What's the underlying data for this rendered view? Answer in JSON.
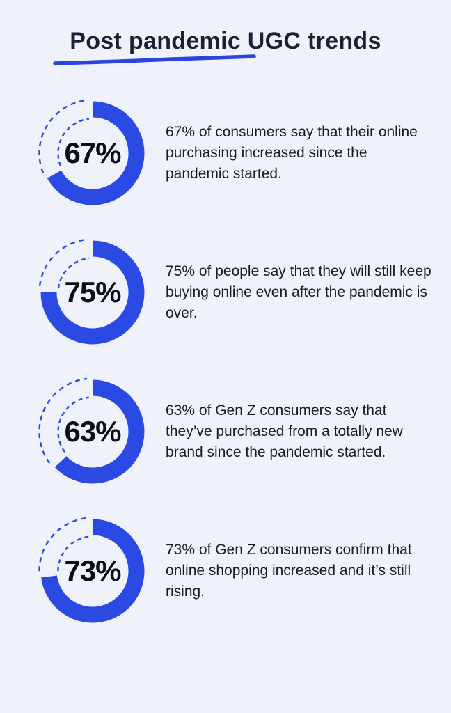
{
  "page": {
    "background_color": "#eff2fb",
    "accent_color": "#2a4ae3",
    "text_color": "#191b22"
  },
  "header": {
    "title": "Post pandemic UGC trends",
    "title_color": "#1b2135",
    "underline_color": "#2a44e0"
  },
  "chart_data": {
    "type": "donut",
    "title": "Post pandemic UGC trends",
    "ring_color": "#2a4ae3",
    "remainder_style": "dashed-outline",
    "start_angle": "top",
    "direction": "clockwise",
    "value_range": [
      0,
      100
    ],
    "items": [
      {
        "value": 67,
        "label": "67%",
        "lines": [
          "67% of consumers say that their online",
          "purchasing increased since the",
          "pandemic started."
        ]
      },
      {
        "value": 75,
        "label": "75%",
        "lines": [
          "75% of people say that they will still keep",
          "buying online even after the pandemic is",
          "over."
        ]
      },
      {
        "value": 63,
        "label": "63%",
        "lines": [
          "63% of Gen Z consumers say that",
          "they’ve purchased from a totally new",
          "brand since the pandemic started."
        ]
      },
      {
        "value": 73,
        "label": "73%",
        "lines": [
          "73% of Gen Z consumers confirm that",
          "online shopping increased and it’s still",
          "rising."
        ]
      }
    ]
  }
}
